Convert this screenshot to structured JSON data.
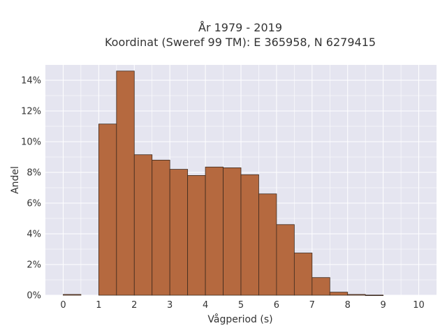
{
  "chart_data": {
    "type": "bar",
    "title_lines": [
      "År 1979 - 2019",
      "Koordinat (Sweref 99 TM): E 365958, N 6279415"
    ],
    "xlabel": "Vågperiod (s)",
    "ylabel": "Andel",
    "bin_width": 0.5,
    "bins": [
      {
        "x0": 0.0,
        "value": 0.05
      },
      {
        "x0": 0.5,
        "value": 0.0
      },
      {
        "x0": 1.0,
        "value": 11.15
      },
      {
        "x0": 1.5,
        "value": 14.6
      },
      {
        "x0": 2.0,
        "value": 9.15
      },
      {
        "x0": 2.5,
        "value": 8.8
      },
      {
        "x0": 3.0,
        "value": 8.2
      },
      {
        "x0": 3.5,
        "value": 7.8
      },
      {
        "x0": 4.0,
        "value": 8.35
      },
      {
        "x0": 4.5,
        "value": 8.3
      },
      {
        "x0": 5.0,
        "value": 7.85
      },
      {
        "x0": 5.5,
        "value": 6.6
      },
      {
        "x0": 6.0,
        "value": 4.6
      },
      {
        "x0": 6.5,
        "value": 2.75
      },
      {
        "x0": 7.0,
        "value": 1.15
      },
      {
        "x0": 7.5,
        "value": 0.2
      },
      {
        "x0": 8.0,
        "value": 0.05
      },
      {
        "x0": 8.5,
        "value": 0.01
      },
      {
        "x0": 9.0,
        "value": 0.0
      },
      {
        "x0": 9.5,
        "value": 0.0
      }
    ],
    "xlim": [
      -0.5,
      10.5
    ],
    "ylim": [
      0,
      15
    ],
    "x_ticks": [
      0,
      1,
      2,
      3,
      4,
      5,
      6,
      7,
      8,
      9,
      10
    ],
    "x_tick_labels": [
      "0",
      "1",
      "2",
      "3",
      "4",
      "5",
      "6",
      "7",
      "8",
      "9",
      "10"
    ],
    "y_ticks": [
      0,
      2,
      4,
      6,
      8,
      10,
      12,
      14
    ],
    "y_tick_labels": [
      "0%",
      "2%",
      "4%",
      "6%",
      "8%",
      "10%",
      "12%",
      "14%"
    ],
    "grid": true,
    "colors": {
      "bar_fill": "#b5693f",
      "bar_edge": "#3d2a1e",
      "plot_bg": "#e5e5f0",
      "grid": "#ffffff"
    }
  }
}
